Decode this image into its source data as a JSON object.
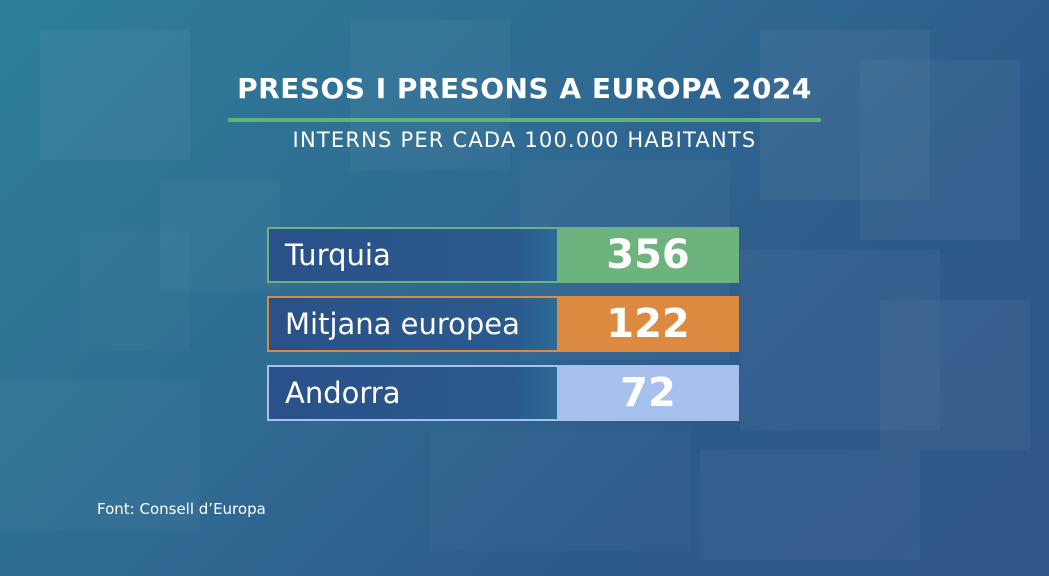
{
  "title": "PRESOS I PRESONS A EUROPA 2024",
  "subtitle": "INTERNS PER CADA 100.000 HABITANTS",
  "source": "Font: Consell d’Europa",
  "colors": {
    "title_rule": "#5fb27a",
    "label_border": "#6fb3d6"
  },
  "chart_data": {
    "type": "table",
    "title": "PRESOS I PRESONS A EUROPA 2024",
    "subtitle": "INTERNS PER CADA 100.000 HABITANTS",
    "rows": [
      {
        "label": "Turquia",
        "value": 356,
        "color": "#6db37d"
      },
      {
        "label": "Mitjana europea",
        "value": 122,
        "color": "#db8a40"
      },
      {
        "label": "Andorra",
        "value": 72,
        "color": "#a8c0ee"
      }
    ]
  }
}
